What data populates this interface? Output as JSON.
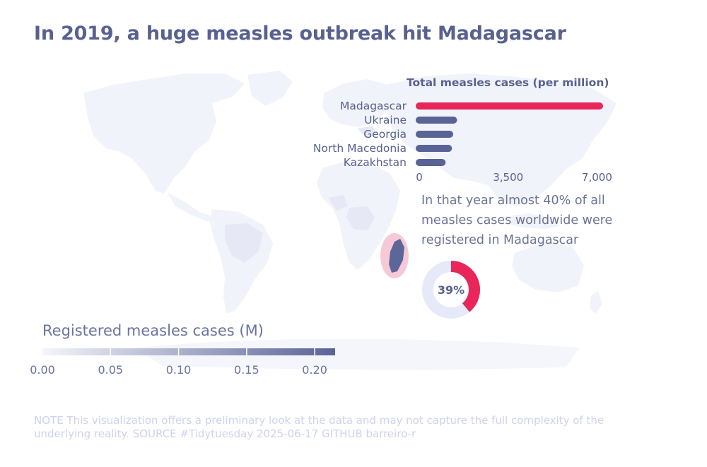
{
  "title": "In 2019, a huge measles outbreak hit Madagascar",
  "annotation": "In that year almost 40% of all measles cases worldwide were registered in Madagascar",
  "note": "NOTE This visualization offers a preliminary look at the data and may not capture the full complexity of the underlying reality. SOURCE #Tidytuesday 2025-06-17 GITHUB barreiro-r",
  "colors": {
    "title": "#58618f",
    "bar_default": "#5a6396",
    "bar_highlight": "#e8265a",
    "map_land": "#f1f3fa",
    "madagascar": "#5d6698",
    "madagascar_halo": "#f6c9d6",
    "donut_track": "#e6eaf8"
  },
  "chart_data": [
    {
      "type": "bar",
      "orientation": "horizontal",
      "title": "Total measles cases (per million)",
      "categories": [
        "Madagascar",
        "Ukraine",
        "Georgia",
        "North Macedonia",
        "Kazakhstan"
      ],
      "values": [
        7100,
        1350,
        1200,
        1150,
        900
      ],
      "highlight": "Madagascar",
      "xlim": [
        0,
        7100
      ],
      "xticks": [
        0,
        3500,
        7000
      ],
      "xtick_labels": [
        "0",
        "3,500",
        "7,000"
      ]
    },
    {
      "type": "pie",
      "style": "donut",
      "label": "39%",
      "values": [
        39,
        61
      ]
    },
    {
      "type": "heatmap",
      "style": "choropleth-legend",
      "title": "Registered measles cases (M)",
      "range": [
        0,
        0.215
      ],
      "ticks": [
        0,
        0.05,
        0.1,
        0.15,
        0.2
      ],
      "tick_labels": [
        "0.00",
        "0.05",
        "0.10",
        "0.15",
        "0.20"
      ],
      "gradient": [
        "#f4f5fb",
        "#5a6396"
      ]
    }
  ]
}
